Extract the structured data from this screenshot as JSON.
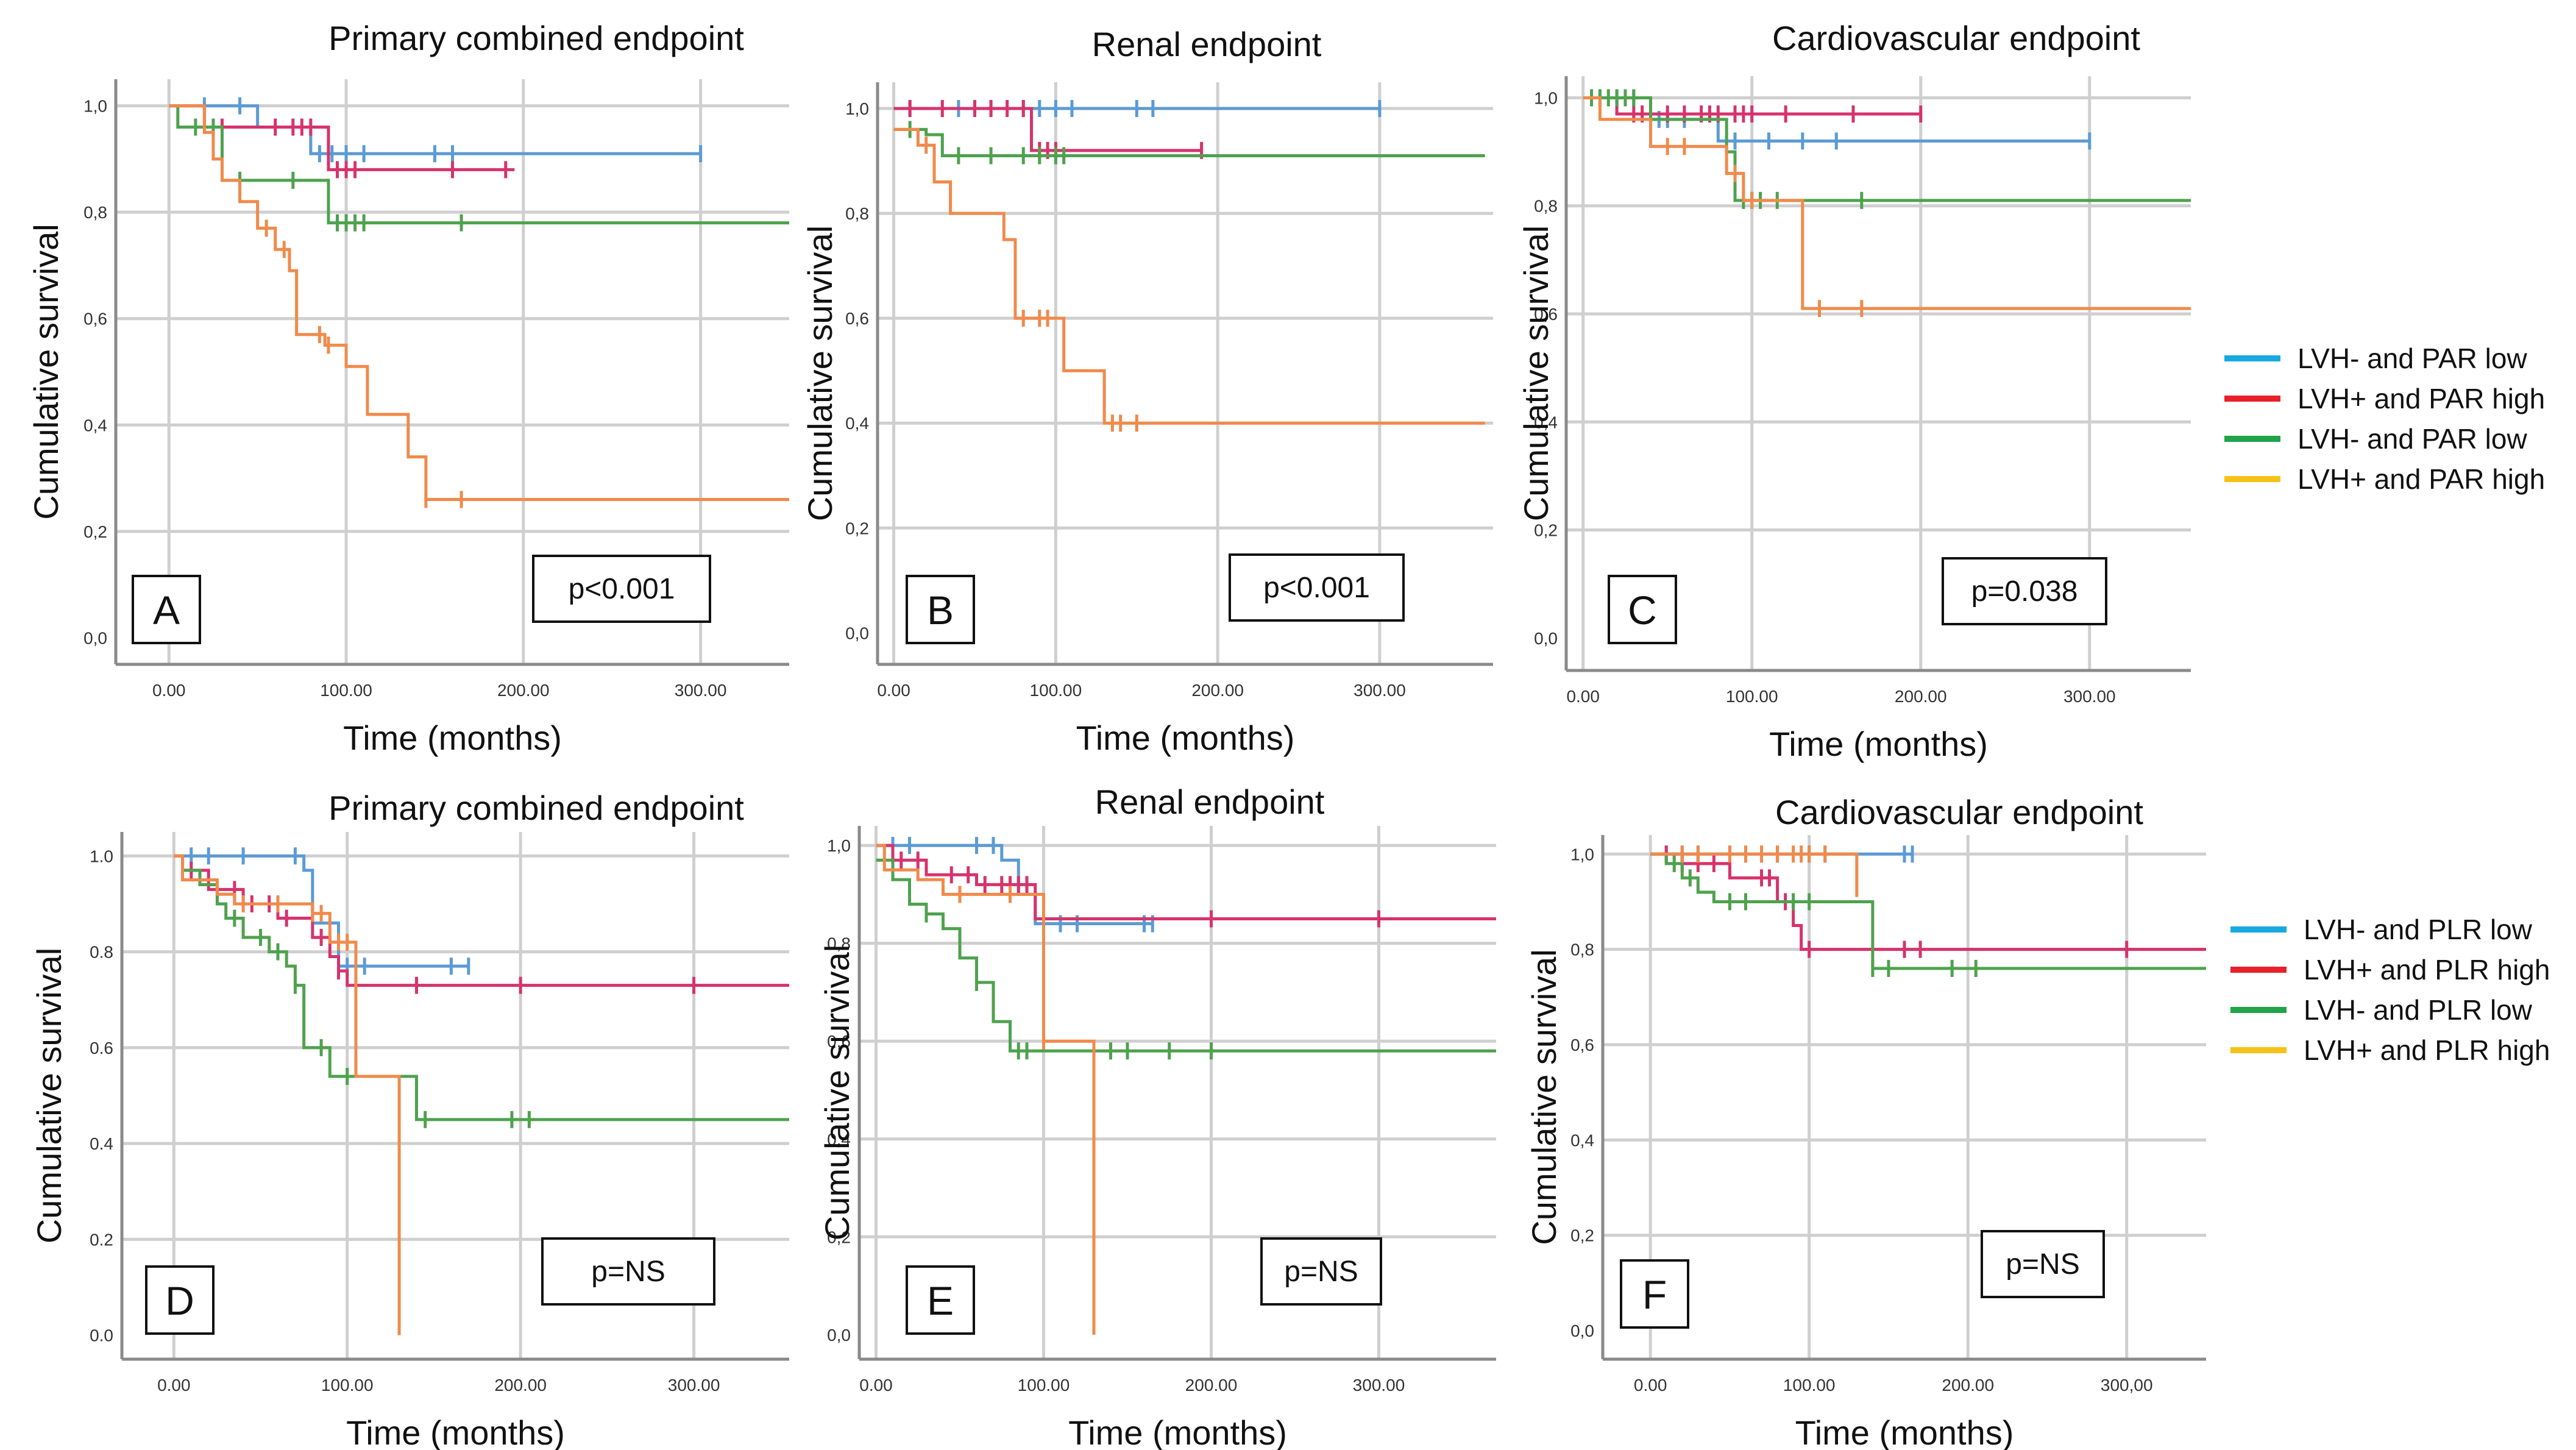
{
  "figure": {
    "y_axis_label": "Cumulative survival",
    "x_axis_label": "Time (months)"
  },
  "colors": {
    "blue": "#5b9bd5",
    "red": "#d6336c",
    "green": "#4ea24e",
    "orange": "#f08a4b"
  },
  "legends": [
    {
      "items": [
        {
          "label": "LVH- and PAR low",
          "color": "#16a9e0"
        },
        {
          "label": "LVH+ and PAR high",
          "color": "#e8202a"
        },
        {
          "label": "LVH- and PAR low",
          "color": "#21a34a"
        },
        {
          "label": "LVH+ and PAR high",
          "color": "#f5c218"
        }
      ]
    },
    {
      "items": [
        {
          "label": "LVH- and PLR low",
          "color": "#16a9e0"
        },
        {
          "label": "LVH+ and PLR high",
          "color": "#e8202a"
        },
        {
          "label": "LVH- and PLR low",
          "color": "#21a34a"
        },
        {
          "label": "LVH+ and PLR high",
          "color": "#f5c218"
        }
      ]
    }
  ],
  "chart_data": [
    {
      "type": "line",
      "panel": "A",
      "title": "Primary combined endpoint",
      "pvalue": "p<0.001",
      "xlabel": "Time (months)",
      "ylabel": "Cumulative survival",
      "xlim": [
        -30,
        350
      ],
      "ylim": [
        -0.05,
        1.05
      ],
      "xticks": [
        0,
        100,
        200,
        300
      ],
      "xtick_labels": [
        "0.00",
        "100.00",
        "200.00",
        "300.00"
      ],
      "yticks": [
        0,
        0.2,
        0.4,
        0.6,
        0.8,
        1.0
      ],
      "ytick_labels": [
        "0,0",
        "0,2",
        "0,4",
        "0,6",
        "0,8",
        "1,0"
      ],
      "series": [
        {
          "name": "blue",
          "x": [
            0,
            50,
            80,
            300
          ],
          "y": [
            1.0,
            0.96,
            0.91,
            0.91
          ],
          "censor_x": [
            20,
            40,
            85,
            92,
            100,
            110,
            150,
            160,
            300
          ]
        },
        {
          "name": "red",
          "x": [
            0,
            20,
            90,
            195
          ],
          "y": [
            1.0,
            0.96,
            0.88,
            0.88
          ],
          "censor_x": [
            30,
            60,
            70,
            75,
            80,
            95,
            100,
            105,
            160,
            190
          ]
        },
        {
          "name": "green",
          "x": [
            0,
            5,
            30,
            90,
            350
          ],
          "y": [
            1.0,
            0.96,
            0.86,
            0.78,
            0.78
          ],
          "censor_x": [
            15,
            25,
            40,
            70,
            95,
            100,
            105,
            110,
            165
          ]
        },
        {
          "name": "orange",
          "x": [
            0,
            20,
            25,
            30,
            40,
            50,
            60,
            68,
            72,
            88,
            100,
            112,
            135,
            145,
            350
          ],
          "y": [
            1.0,
            0.95,
            0.9,
            0.86,
            0.82,
            0.77,
            0.73,
            0.69,
            0.57,
            0.55,
            0.51,
            0.42,
            0.34,
            0.26,
            0.26
          ],
          "censor_x": [
            55,
            65,
            85,
            90,
            145,
            165
          ]
        }
      ]
    },
    {
      "type": "line",
      "panel": "B",
      "title": "Renal endpoint",
      "pvalue": "p<0.001",
      "xlabel": "Time (months)",
      "ylabel": "Cumulative survival",
      "xlim": [
        -10,
        370
      ],
      "ylim": [
        -0.06,
        1.05
      ],
      "xticks": [
        0,
        100,
        200,
        300
      ],
      "xtick_labels": [
        "0.00",
        "100.00",
        "200.00",
        "300.00"
      ],
      "yticks": [
        0,
        0.2,
        0.4,
        0.6,
        0.8,
        1.0
      ],
      "ytick_labels": [
        "0,0",
        "0,2",
        "0,4",
        "0,6",
        "0,8",
        "1,0"
      ],
      "series": [
        {
          "name": "blue",
          "x": [
            0,
            300
          ],
          "y": [
            1.0,
            1.0
          ],
          "censor_x": [
            10,
            40,
            60,
            80,
            90,
            100,
            110,
            150,
            160,
            300
          ]
        },
        {
          "name": "red",
          "x": [
            0,
            85,
            190
          ],
          "y": [
            1.0,
            0.92,
            0.92
          ],
          "censor_x": [
            10,
            30,
            50,
            60,
            70,
            80,
            90,
            95,
            100,
            190
          ]
        },
        {
          "name": "green",
          "x": [
            0,
            20,
            30,
            95,
            365
          ],
          "y": [
            0.96,
            0.95,
            0.91,
            0.91,
            0.91
          ],
          "censor_x": [
            10,
            40,
            60,
            80,
            90,
            100,
            105
          ]
        },
        {
          "name": "orange",
          "x": [
            0,
            15,
            25,
            35,
            60,
            68,
            75,
            105,
            130,
            365
          ],
          "y": [
            0.96,
            0.93,
            0.86,
            0.8,
            0.8,
            0.75,
            0.6,
            0.5,
            0.4,
            0.4
          ],
          "censor_x": [
            20,
            80,
            90,
            95,
            135,
            140,
            150
          ]
        }
      ]
    },
    {
      "type": "line",
      "panel": "C",
      "title": "Cardiovascular endpoint",
      "pvalue": "p=0.038",
      "xlabel": "Time (months)",
      "ylabel": "Cumulative survival",
      "xlim": [
        -10,
        360
      ],
      "ylim": [
        -0.06,
        1.04
      ],
      "xticks": [
        0,
        100,
        200,
        300
      ],
      "xtick_labels": [
        "0.00",
        "100.00",
        "200.00",
        "300.00"
      ],
      "yticks": [
        0,
        0.2,
        0.4,
        0.6,
        0.8,
        1.0
      ],
      "ytick_labels": [
        "0,0",
        "0,2",
        "0,4",
        "0,6",
        "0,8",
        "1,0"
      ],
      "series": [
        {
          "name": "blue",
          "x": [
            0,
            40,
            80,
            300
          ],
          "y": [
            1.0,
            0.96,
            0.92,
            0.92
          ],
          "censor_x": [
            10,
            20,
            30,
            45,
            50,
            60,
            90,
            110,
            130,
            150,
            300
          ]
        },
        {
          "name": "red",
          "x": [
            0,
            20,
            200
          ],
          "y": [
            1.0,
            0.97,
            0.97
          ],
          "censor_x": [
            30,
            35,
            40,
            50,
            60,
            70,
            75,
            80,
            90,
            95,
            100,
            120,
            160,
            200
          ]
        },
        {
          "name": "green",
          "x": [
            0,
            40,
            85,
            90,
            360
          ],
          "y": [
            1.0,
            0.96,
            0.9,
            0.81,
            0.81
          ],
          "censor_x": [
            5,
            10,
            15,
            20,
            25,
            30,
            95,
            100,
            105,
            115,
            165
          ]
        },
        {
          "name": "orange",
          "x": [
            0,
            10,
            40,
            85,
            95,
            130,
            140,
            360
          ],
          "y": [
            1.0,
            0.96,
            0.91,
            0.86,
            0.81,
            0.61,
            0.61,
            0.61
          ],
          "censor_x": [
            50,
            60,
            90,
            100,
            140,
            165
          ]
        }
      ]
    },
    {
      "type": "line",
      "panel": "D",
      "title": "Primary combined endpoint",
      "pvalue": "p=NS",
      "xlabel": "Time (months)",
      "ylabel": "Cumulative survival",
      "xlim": [
        -30,
        355
      ],
      "ylim": [
        -0.05,
        1.05
      ],
      "xticks": [
        0,
        100,
        200,
        300
      ],
      "xtick_labels": [
        "0.00",
        "100.00",
        "200.00",
        "300.00"
      ],
      "yticks": [
        0,
        0.2,
        0.4,
        0.6,
        0.8,
        1.0
      ],
      "ytick_labels": [
        "0.0",
        "0.2",
        "0.4",
        "0.6",
        "0.8",
        "1.0"
      ],
      "series": [
        {
          "name": "blue",
          "x": [
            0,
            75,
            80,
            95,
            170
          ],
          "y": [
            1.0,
            0.97,
            0.86,
            0.77,
            0.77
          ],
          "censor_x": [
            10,
            20,
            40,
            70,
            100,
            110,
            160,
            170
          ]
        },
        {
          "name": "red",
          "x": [
            0,
            5,
            20,
            40,
            60,
            80,
            90,
            95,
            100,
            355
          ],
          "y": [
            1.0,
            0.97,
            0.93,
            0.9,
            0.87,
            0.83,
            0.79,
            0.76,
            0.73,
            0.73
          ],
          "censor_x": [
            10,
            25,
            35,
            45,
            55,
            65,
            85,
            95,
            105,
            140,
            200,
            300
          ]
        },
        {
          "name": "green",
          "x": [
            0,
            5,
            15,
            25,
            30,
            40,
            55,
            65,
            70,
            75,
            90,
            130,
            140,
            355
          ],
          "y": [
            1.0,
            0.97,
            0.94,
            0.9,
            0.87,
            0.83,
            0.8,
            0.77,
            0.73,
            0.6,
            0.54,
            0.54,
            0.45,
            0.45
          ],
          "censor_x": [
            35,
            50,
            60,
            70,
            85,
            100,
            145,
            195,
            205
          ]
        },
        {
          "name": "orange",
          "x": [
            0,
            5,
            25,
            35,
            50,
            80,
            90,
            100,
            105,
            130,
            130
          ],
          "y": [
            1.0,
            0.95,
            0.92,
            0.9,
            0.9,
            0.88,
            0.82,
            0.82,
            0.54,
            0.54,
            0.0
          ],
          "censor_x": [
            40,
            60,
            80,
            85,
            95,
            100
          ]
        }
      ]
    },
    {
      "type": "line",
      "panel": "E",
      "title": "Renal endpoint",
      "pvalue": "p=NS",
      "xlabel": "Time (months)",
      "ylabel": "Cumulative survival",
      "xlim": [
        -10,
        370
      ],
      "ylim": [
        -0.05,
        1.04
      ],
      "xticks": [
        0,
        100,
        200,
        300
      ],
      "xtick_labels": [
        "0.00",
        "100.00",
        "200.00",
        "300.00"
      ],
      "yticks": [
        0,
        0.2,
        0.4,
        0.6,
        0.8,
        1.0
      ],
      "ytick_labels": [
        "0,0",
        "0,2",
        "0,4",
        "0,6",
        "0,8",
        "1,0"
      ],
      "series": [
        {
          "name": "blue",
          "x": [
            0,
            75,
            85,
            95,
            165
          ],
          "y": [
            1.0,
            0.97,
            0.9,
            0.84,
            0.84
          ],
          "censor_x": [
            10,
            20,
            60,
            70,
            110,
            120,
            160,
            165
          ]
        },
        {
          "name": "red",
          "x": [
            0,
            10,
            30,
            60,
            95,
            370
          ],
          "y": [
            1.0,
            0.97,
            0.94,
            0.92,
            0.85,
            0.85
          ],
          "censor_x": [
            15,
            25,
            45,
            55,
            65,
            75,
            80,
            85,
            90,
            100,
            200,
            300
          ]
        },
        {
          "name": "green",
          "x": [
            0,
            10,
            20,
            30,
            40,
            50,
            60,
            70,
            80,
            370
          ],
          "y": [
            0.97,
            0.93,
            0.88,
            0.86,
            0.83,
            0.77,
            0.72,
            0.64,
            0.58,
            0.58
          ],
          "censor_x": [
            30,
            60,
            85,
            90,
            140,
            150,
            175,
            200
          ]
        },
        {
          "name": "orange",
          "x": [
            0,
            5,
            25,
            40,
            95,
            100,
            130,
            130
          ],
          "y": [
            1.0,
            0.95,
            0.93,
            0.9,
            0.9,
            0.6,
            0.6,
            0.0
          ],
          "censor_x": [
            50,
            80,
            100
          ]
        }
      ]
    },
    {
      "type": "line",
      "panel": "F",
      "title": "Cardiovascular endpoint",
      "pvalue": "p=NS",
      "xlabel": "Time (months)",
      "ylabel": "Cumulative survival",
      "xlim": [
        -30,
        350
      ],
      "ylim": [
        -0.06,
        1.04
      ],
      "xticks": [
        0,
        100,
        200,
        300
      ],
      "xtick_labels": [
        "0.00",
        "100.00",
        "200.00",
        "300,00"
      ],
      "yticks": [
        0,
        0.2,
        0.4,
        0.6,
        0.8,
        1.0
      ],
      "ytick_labels": [
        "0,0",
        "0,2",
        "0,4",
        "0,6",
        "0,8",
        "1,0"
      ],
      "series": [
        {
          "name": "blue",
          "x": [
            0,
            165
          ],
          "y": [
            1.0,
            1.0
          ],
          "censor_x": [
            10,
            20,
            30,
            50,
            60,
            70,
            80,
            100,
            110,
            160,
            165
          ]
        },
        {
          "name": "red",
          "x": [
            0,
            20,
            50,
            80,
            90,
            95,
            350
          ],
          "y": [
            1.0,
            0.98,
            0.95,
            0.9,
            0.85,
            0.8,
            0.8
          ],
          "censor_x": [
            10,
            20,
            30,
            40,
            70,
            75,
            85,
            100,
            160,
            170,
            300
          ]
        },
        {
          "name": "green",
          "x": [
            0,
            10,
            20,
            30,
            40,
            130,
            140,
            350
          ],
          "y": [
            1.0,
            0.98,
            0.95,
            0.92,
            0.9,
            0.9,
            0.76,
            0.76
          ],
          "censor_x": [
            15,
            25,
            50,
            60,
            90,
            100,
            140,
            150,
            190,
            205
          ]
        },
        {
          "name": "orange",
          "x": [
            0,
            90,
            130
          ],
          "y": [
            1.0,
            1.0,
            0.91
          ],
          "censor_x": [
            20,
            30,
            50,
            60,
            70,
            80,
            90,
            95,
            100,
            110
          ]
        }
      ]
    }
  ]
}
